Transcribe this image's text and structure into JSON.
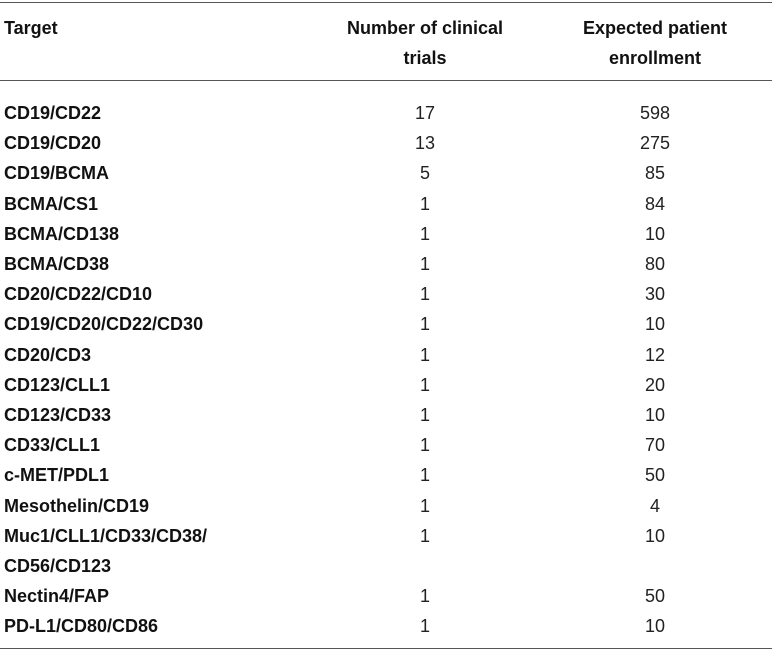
{
  "table": {
    "header": [
      "Target",
      [
        "Number of clinical",
        "trials"
      ],
      [
        "Expected patient",
        "enrollment"
      ]
    ],
    "rows": [
      [
        "CD19/CD22",
        17,
        598
      ],
      [
        "CD19/CD20",
        13,
        275
      ],
      [
        "CD19/BCMA",
        5,
        85
      ],
      [
        "BCMA/CS1",
        1,
        84
      ],
      [
        "BCMA/CD138",
        1,
        10
      ],
      [
        "BCMA/CD38",
        1,
        80
      ],
      [
        "CD20/CD22/CD10",
        1,
        30
      ],
      [
        "CD19/CD20/CD22/CD30",
        1,
        10
      ],
      [
        "CD20/CD3",
        1,
        12
      ],
      [
        "CD123/CLL1",
        1,
        20
      ],
      [
        "CD123/CD33",
        1,
        10
      ],
      [
        "CD33/CLL1",
        1,
        70
      ],
      [
        "c-MET/PDL1",
        1,
        50
      ],
      [
        "Mesothelin/CD19",
        1,
        4
      ],
      [
        [
          "Muc1/CLL1/CD33/CD38/",
          "CD56/CD123"
        ],
        1,
        10
      ],
      [
        "Nectin4/FAP",
        1,
        50
      ],
      [
        "PD-L1/CD80/CD86",
        1,
        10
      ]
    ]
  }
}
